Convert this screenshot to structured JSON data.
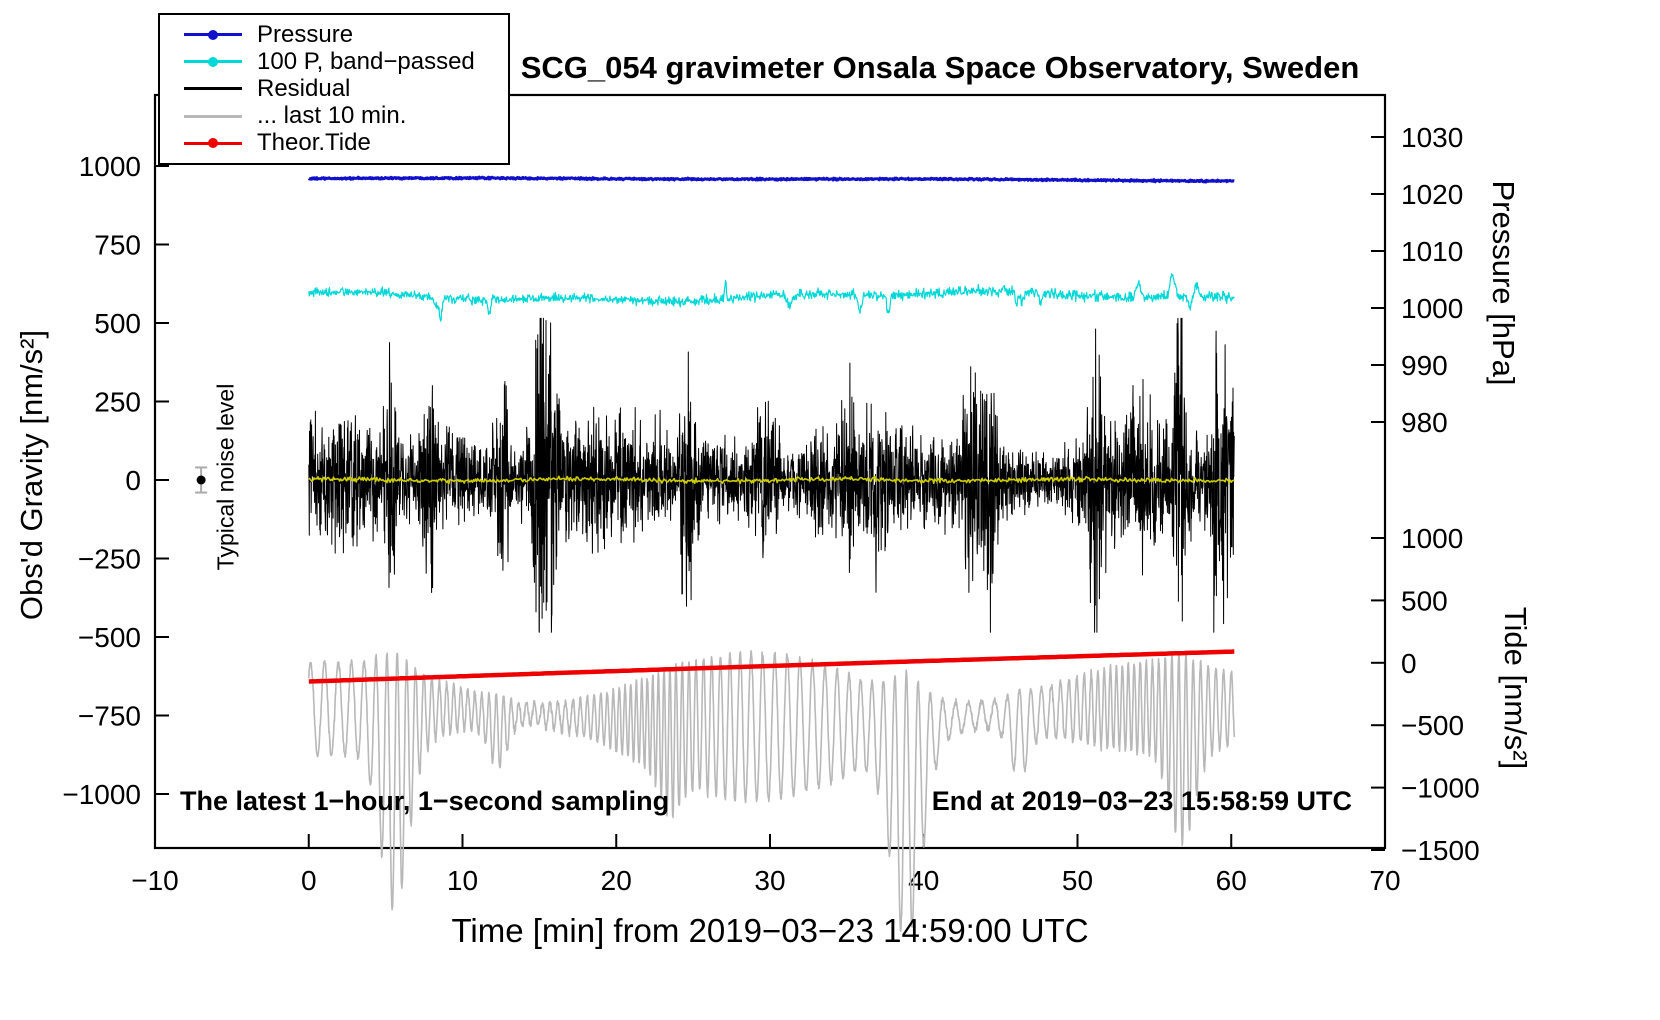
{
  "chart_data": {
    "type": "line",
    "title": "SCG_054 gravimeter Onsala Space Observatory, Sweden",
    "xlabel": "Time [min] from 2019−03−23 14:59:00 UTC",
    "ylabel_left": "Obs'd Gravity [nm/s²]",
    "ylabel_pressure": "Pressure [hPa]",
    "ylabel_tide": "Tide [nm/s²]",
    "footnote_left": "The latest 1−hour, 1−second sampling",
    "footnote_right": "End at 2019−03−23 15:58:59 UTC",
    "x_axis": {
      "min": -10,
      "max": 70,
      "ticks": [
        -10,
        0,
        10,
        20,
        30,
        40,
        50,
        60,
        70
      ]
    },
    "y_gravity": {
      "ticks": [
        1000,
        750,
        500,
        250,
        0,
        -250,
        -500,
        -750,
        -1000
      ]
    },
    "y_pressure": {
      "range": [
        980,
        1030
      ],
      "ticks": [
        1030,
        1020,
        1010,
        1000,
        990,
        980
      ]
    },
    "y_tide": {
      "range": [
        -1500,
        1000
      ],
      "ticks": [
        1000,
        500,
        0,
        -500,
        -1000,
        -1500
      ]
    },
    "legend": [
      {
        "label": "Pressure",
        "color": "#1111cc",
        "marker": true
      },
      {
        "label": "100 P, band−passed",
        "color": "#00d8d8",
        "marker": true
      },
      {
        "label": "Residual",
        "color": "#000000",
        "marker": false
      },
      {
        "label": "... last 10 min.",
        "color": "#b8b8b8",
        "marker": false
      },
      {
        "label": "Theor.Tide",
        "color": "#ee0000",
        "marker": true
      }
    ],
    "series": [
      {
        "name": "pressure",
        "axis": "pressure",
        "color": "#1111cc",
        "mean_hpa": 1022.5,
        "noise_hpa": 0.15,
        "x_start": 0,
        "x_end": 60.2,
        "samples": 1500,
        "width": 3
      },
      {
        "name": "pressure-band-passed",
        "axis": "gravity",
        "color": "#00d8d8",
        "center": 585,
        "noise_sd": 13,
        "x_start": 0,
        "x_end": 60.2,
        "samples": 1700,
        "width": 1.2
      },
      {
        "name": "residual",
        "axis": "gravity",
        "color": "#000000",
        "center": 0,
        "typical_amp": 180,
        "peak_amp": 500,
        "x_start": 0,
        "x_end": 60.2,
        "samples": 3610,
        "width": 1
      },
      {
        "name": "residual-smoothed",
        "axis": "gravity",
        "color": "#cccc00",
        "center": 0,
        "noise_sd": 6,
        "x_start": 0,
        "x_end": 60.2,
        "samples": 900,
        "width": 1.6
      },
      {
        "name": "residual-last-10-min",
        "axis": "gravity",
        "color": "#b8b8b8",
        "center": -755,
        "typical_amp": 290,
        "peak_amp": 900,
        "x_start": 0,
        "x_end": 60.2,
        "samples": 3200,
        "width": 1.6
      },
      {
        "name": "theoretical-tide",
        "axis": "tide",
        "color": "#ee0000",
        "start_value": -150,
        "end_value": 90,
        "x_start": 0,
        "x_end": 60.2,
        "samples": 240,
        "width": 4.5
      }
    ],
    "noise_marker": {
      "x": -7,
      "value": 0,
      "error": 40,
      "label": "Typical noise level"
    }
  }
}
